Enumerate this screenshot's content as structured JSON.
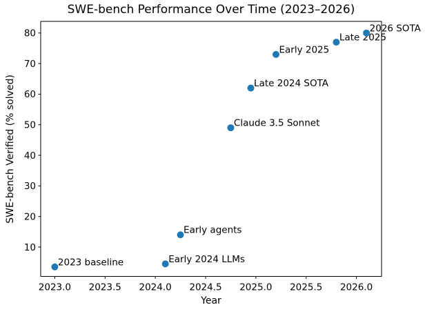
{
  "figure": {
    "title": "SWE-bench Performance Over Time (2023–2026)"
  },
  "chart_data": {
    "type": "scatter",
    "title": "SWE-bench Performance Over Time (2023–2026)",
    "xlabel": "Year",
    "ylabel": "SWE-bench Verified (% solved)",
    "xlim": [
      2022.86,
      2026.25
    ],
    "ylim": [
      0.4,
      83.8
    ],
    "grid": false,
    "legend_position": "none",
    "marker_color": "#1f77b4",
    "axis_color": "#000000",
    "background_color": "#ffffff",
    "xticks": [
      2023.0,
      2023.5,
      2024.0,
      2024.5,
      2025.0,
      2025.5,
      2026.0
    ],
    "xtick_labels": [
      "2023.0",
      "2023.5",
      "2024.0",
      "2024.5",
      "2025.0",
      "2025.5",
      "2026.0"
    ],
    "yticks": [
      10,
      20,
      30,
      40,
      50,
      60,
      70,
      80
    ],
    "ytick_labels": [
      "10",
      "20",
      "30",
      "40",
      "50",
      "60",
      "70",
      "80"
    ],
    "points": [
      {
        "x": 2023.0,
        "y": 3.5,
        "label": "2023 baseline"
      },
      {
        "x": 2024.1,
        "y": 4.5,
        "label": "Early 2024 LLMs"
      },
      {
        "x": 2024.25,
        "y": 14,
        "label": "Early agents"
      },
      {
        "x": 2024.75,
        "y": 49,
        "label": "Claude 3.5 Sonnet"
      },
      {
        "x": 2024.95,
        "y": 62,
        "label": "Late 2024 SOTA"
      },
      {
        "x": 2025.2,
        "y": 73,
        "label": "Early 2025"
      },
      {
        "x": 2025.8,
        "y": 77,
        "label": "Late 2025"
      },
      {
        "x": 2026.1,
        "y": 80,
        "label": "2026 SOTA"
      }
    ]
  }
}
